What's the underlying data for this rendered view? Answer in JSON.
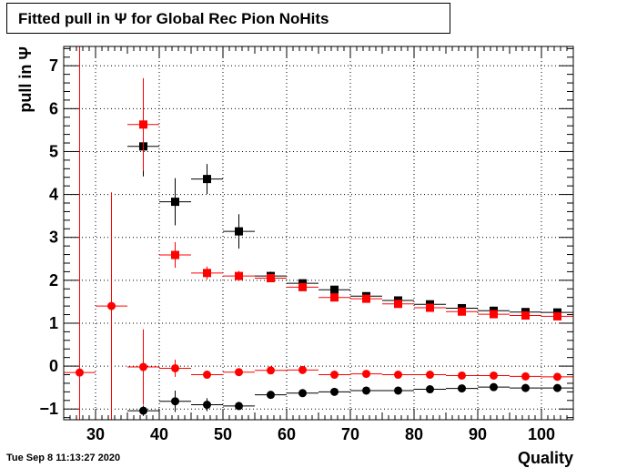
{
  "title": "Fitted pull in  Ψ  for Global Rec Pion NoHits",
  "timestamp": "Tue Sep  8 11:13:27 2020",
  "chart_data": {
    "type": "scatter",
    "title": "Fitted pull in  Ψ  for Global Rec Pion NoHits",
    "xlabel": "Quality",
    "ylabel": "pull in  Ψ",
    "xlim": [
      25,
      105
    ],
    "ylim": [
      -1.25,
      7.45
    ],
    "grid": true,
    "x_ticks": [
      30,
      40,
      50,
      60,
      70,
      80,
      90,
      100
    ],
    "y_ticks": [
      -1,
      0,
      1,
      2,
      3,
      4,
      5,
      6,
      7
    ],
    "series": [
      {
        "color": "#000000",
        "marker": "square",
        "points": [
          {
            "x": 37.5,
            "y": 5.12,
            "xerr": 2.5,
            "yerr": 0.7
          },
          {
            "x": 42.5,
            "y": 3.83,
            "xerr": 2.5,
            "yerr": 0.55
          },
          {
            "x": 47.5,
            "y": 4.36,
            "xerr": 2.5,
            "yerr": 0.35
          },
          {
            "x": 52.5,
            "y": 3.14,
            "xerr": 2.5,
            "yerr": 0.4
          },
          {
            "x": 57.5,
            "y": 2.1,
            "xerr": 2.5,
            "yerr": 0.1
          },
          {
            "x": 62.5,
            "y": 1.93,
            "xerr": 2.5,
            "yerr": 0.05
          },
          {
            "x": 67.5,
            "y": 1.78,
            "xerr": 2.5,
            "yerr": 0.04
          },
          {
            "x": 72.5,
            "y": 1.63,
            "xerr": 2.5,
            "yerr": 0.03
          },
          {
            "x": 77.5,
            "y": 1.53,
            "xerr": 2.5,
            "yerr": 0.03
          },
          {
            "x": 82.5,
            "y": 1.44,
            "xerr": 2.5,
            "yerr": 0.02
          },
          {
            "x": 87.5,
            "y": 1.35,
            "xerr": 2.5,
            "yerr": 0.02
          },
          {
            "x": 92.5,
            "y": 1.29,
            "xerr": 2.5,
            "yerr": 0.02
          },
          {
            "x": 97.5,
            "y": 1.26,
            "xerr": 2.5,
            "yerr": 0.02
          },
          {
            "x": 102.5,
            "y": 1.25,
            "xerr": 2.5,
            "yerr": 0.02
          }
        ]
      },
      {
        "color": "#ff0000",
        "marker": "square",
        "points": [
          {
            "x": 37.5,
            "y": 5.63,
            "xerr": 2.5,
            "yerr": 1.08
          },
          {
            "x": 42.5,
            "y": 2.59,
            "xerr": 2.5,
            "yerr": 0.3
          },
          {
            "x": 47.5,
            "y": 2.17,
            "xerr": 2.5,
            "yerr": 0.15
          },
          {
            "x": 52.5,
            "y": 2.1,
            "xerr": 2.5,
            "yerr": 0.12
          },
          {
            "x": 57.5,
            "y": 2.05,
            "xerr": 2.5,
            "yerr": 0.08
          },
          {
            "x": 62.5,
            "y": 1.84,
            "xerr": 2.5,
            "yerr": 0.05
          },
          {
            "x": 67.5,
            "y": 1.6,
            "xerr": 2.5,
            "yerr": 0.04
          },
          {
            "x": 72.5,
            "y": 1.57,
            "xerr": 2.5,
            "yerr": 0.03
          },
          {
            "x": 77.5,
            "y": 1.45,
            "xerr": 2.5,
            "yerr": 0.03
          },
          {
            "x": 82.5,
            "y": 1.36,
            "xerr": 2.5,
            "yerr": 0.02
          },
          {
            "x": 87.5,
            "y": 1.27,
            "xerr": 2.5,
            "yerr": 0.02
          },
          {
            "x": 92.5,
            "y": 1.21,
            "xerr": 2.5,
            "yerr": 0.02
          },
          {
            "x": 97.5,
            "y": 1.18,
            "xerr": 2.5,
            "yerr": 0.02
          },
          {
            "x": 102.5,
            "y": 1.16,
            "xerr": 2.5,
            "yerr": 0.02
          }
        ]
      },
      {
        "color": "#ff0000",
        "marker": "circle",
        "points": [
          {
            "x": 27.5,
            "y": -0.15,
            "xerr": 2.5,
            "yerr": 7.6
          },
          {
            "x": 32.5,
            "y": 1.4,
            "xerr": 2.5,
            "yerr": 2.65
          },
          {
            "x": 37.5,
            "y": -0.02,
            "xerr": 2.5,
            "yerr": 0.88
          },
          {
            "x": 42.5,
            "y": -0.05,
            "xerr": 2.5,
            "yerr": 0.2
          },
          {
            "x": 47.5,
            "y": -0.2,
            "xerr": 2.5,
            "yerr": 0.08
          },
          {
            "x": 52.5,
            "y": -0.14,
            "xerr": 2.5,
            "yerr": 0.06
          },
          {
            "x": 57.5,
            "y": -0.1,
            "xerr": 2.5,
            "yerr": 0.04
          },
          {
            "x": 62.5,
            "y": -0.09,
            "xerr": 2.5,
            "yerr": 0.04
          },
          {
            "x": 67.5,
            "y": -0.2,
            "xerr": 2.5,
            "yerr": 0.03
          },
          {
            "x": 72.5,
            "y": -0.18,
            "xerr": 2.5,
            "yerr": 0.03
          },
          {
            "x": 77.5,
            "y": -0.2,
            "xerr": 2.5,
            "yerr": 0.02
          },
          {
            "x": 82.5,
            "y": -0.2,
            "xerr": 2.5,
            "yerr": 0.02
          },
          {
            "x": 87.5,
            "y": -0.22,
            "xerr": 2.5,
            "yerr": 0.02
          },
          {
            "x": 92.5,
            "y": -0.22,
            "xerr": 2.5,
            "yerr": 0.02
          },
          {
            "x": 97.5,
            "y": -0.24,
            "xerr": 2.5,
            "yerr": 0.02
          },
          {
            "x": 102.5,
            "y": -0.25,
            "xerr": 2.5,
            "yerr": 0.02
          }
        ]
      },
      {
        "color": "#000000",
        "marker": "circle",
        "points": [
          {
            "x": 37.5,
            "y": -1.04,
            "xerr": 2.5,
            "yerr": 0.12
          },
          {
            "x": 42.5,
            "y": -0.82,
            "xerr": 2.5,
            "yerr": 0.25
          },
          {
            "x": 47.5,
            "y": -0.9,
            "xerr": 2.5,
            "yerr": 0.15
          },
          {
            "x": 52.5,
            "y": -0.93,
            "xerr": 2.5,
            "yerr": 0.08
          },
          {
            "x": 57.5,
            "y": -0.67,
            "xerr": 2.5,
            "yerr": 0.05
          },
          {
            "x": 62.5,
            "y": -0.63,
            "xerr": 2.5,
            "yerr": 0.04
          },
          {
            "x": 67.5,
            "y": -0.6,
            "xerr": 2.5,
            "yerr": 0.03
          },
          {
            "x": 72.5,
            "y": -0.57,
            "xerr": 2.5,
            "yerr": 0.03
          },
          {
            "x": 77.5,
            "y": -0.57,
            "xerr": 2.5,
            "yerr": 0.02
          },
          {
            "x": 82.5,
            "y": -0.54,
            "xerr": 2.5,
            "yerr": 0.02
          },
          {
            "x": 87.5,
            "y": -0.52,
            "xerr": 2.5,
            "yerr": 0.02
          },
          {
            "x": 92.5,
            "y": -0.49,
            "xerr": 2.5,
            "yerr": 0.02
          },
          {
            "x": 97.5,
            "y": -0.51,
            "xerr": 2.5,
            "yerr": 0.02
          },
          {
            "x": 102.5,
            "y": -0.51,
            "xerr": 2.5,
            "yerr": 0.02
          }
        ]
      }
    ]
  }
}
